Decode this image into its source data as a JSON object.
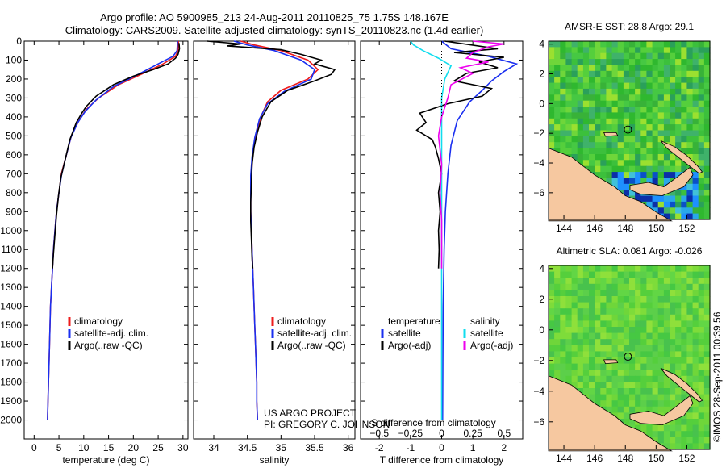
{
  "header": {
    "line1": "Argo profile: AO 5900985_213 24-Aug-2011 20110825_75 1.75S 148.167E",
    "line2": "Climatology: CARS2009. Satellite-adjusted climatology: synTS_20110823.nc (1.4d earlier)"
  },
  "colors": {
    "climatology": "#ee1c1c",
    "satellite": "#1a2ff0",
    "argo": "#000000",
    "argo_salinity_adj": "#ee00ee",
    "satellite_salinity": "#11ddee",
    "land": "#f6c8a0",
    "sea": "#33bb33"
  },
  "credit": {
    "project": "US ARGO PROJECT",
    "pi": "PI: GREGORY C. JOHNSON",
    "imos": "©IMOS 28-Sep-2011 00:39:56"
  },
  "chart_data": [
    {
      "type": "line",
      "id": "temperature",
      "xlabel": "temperature (deg C)",
      "ylabel": "",
      "xlim": [
        -2,
        31
      ],
      "ylim": [
        2100,
        0
      ],
      "xticks": [
        0,
        5,
        10,
        15,
        20,
        25,
        30
      ],
      "yticks": [
        0,
        100,
        200,
        300,
        400,
        500,
        600,
        700,
        800,
        900,
        1000,
        1100,
        1200,
        1300,
        1400,
        1500,
        1600,
        1700,
        1800,
        1900,
        2000
      ],
      "legend": [
        "climatology",
        "satellite-adj. clim.",
        "Argo(..raw -QC)"
      ],
      "series": [
        {
          "name": "climatology",
          "color": "#ee1c1c",
          "points": [
            [
              29.1,
              0
            ],
            [
              29.0,
              50
            ],
            [
              28.5,
              80
            ],
            [
              26,
              120
            ],
            [
              22,
              170
            ],
            [
              17,
              230
            ],
            [
              13,
              300
            ],
            [
              10.5,
              360
            ],
            [
              9,
              420
            ],
            [
              7.5,
              500
            ],
            [
              6.5,
              600
            ],
            [
              5.5,
              700
            ],
            [
              5,
              800
            ],
            [
              4.5,
              900
            ],
            [
              4.2,
              1000
            ],
            [
              3.9,
              1100
            ],
            [
              3.7,
              1200
            ],
            [
              3.5,
              1300
            ],
            [
              3.3,
              1400
            ],
            [
              3.2,
              1500
            ],
            [
              3.1,
              1600
            ],
            [
              3.0,
              1700
            ],
            [
              2.9,
              1800
            ],
            [
              2.8,
              1900
            ],
            [
              2.7,
              2000
            ]
          ]
        },
        {
          "name": "satellite-adj. clim.",
          "color": "#1a2ff0",
          "points": [
            [
              28.9,
              0
            ],
            [
              28.8,
              50
            ],
            [
              28,
              80
            ],
            [
              25,
              120
            ],
            [
              21,
              175
            ],
            [
              16,
              240
            ],
            [
              12.5,
              310
            ],
            [
              10.3,
              370
            ],
            [
              8.8,
              430
            ],
            [
              7.4,
              510
            ],
            [
              6.4,
              610
            ],
            [
              5.5,
              710
            ],
            [
              5,
              800
            ],
            [
              4.5,
              900
            ],
            [
              4.2,
              1000
            ],
            [
              3.9,
              1100
            ],
            [
              3.7,
              1200
            ],
            [
              3.5,
              1300
            ],
            [
              3.3,
              1400
            ],
            [
              3.2,
              1500
            ],
            [
              3.1,
              1600
            ],
            [
              3.0,
              1700
            ],
            [
              2.9,
              1800
            ],
            [
              2.8,
              1900
            ],
            [
              2.7,
              2000
            ]
          ]
        },
        {
          "name": "Argo(..raw -QC)",
          "color": "#000000",
          "points": [
            [
              29.2,
              10
            ],
            [
              29.3,
              40
            ],
            [
              29.0,
              70
            ],
            [
              28.5,
              90
            ],
            [
              27,
              120
            ],
            [
              24,
              150
            ],
            [
              20,
              185
            ],
            [
              16,
              230
            ],
            [
              12.5,
              290
            ],
            [
              10.5,
              345
            ],
            [
              9.6,
              380
            ],
            [
              8.5,
              430
            ],
            [
              7.2,
              520
            ],
            [
              6.3,
              620
            ],
            [
              5.4,
              720
            ],
            [
              4.9,
              820
            ],
            [
              4.5,
              920
            ],
            [
              4.2,
              1020
            ],
            [
              3.9,
              1120
            ],
            [
              3.7,
              1200
            ]
          ]
        }
      ]
    },
    {
      "type": "line",
      "id": "salinity",
      "xlabel": "salinity",
      "ylabel": "",
      "xlim": [
        33.7,
        36.1
      ],
      "ylim": [
        2100,
        0
      ],
      "xticks": [
        34,
        34.5,
        35,
        35.5,
        36
      ],
      "legend": [
        "climatology",
        "satellite-adj. clim.",
        "Argo(..raw -QC)"
      ],
      "series": [
        {
          "name": "climatology",
          "color": "#ee1c1c",
          "points": [
            [
              34.4,
              0
            ],
            [
              34.6,
              20
            ],
            [
              35.0,
              50
            ],
            [
              35.4,
              100
            ],
            [
              35.55,
              150
            ],
            [
              35.4,
              200
            ],
            [
              35.0,
              260
            ],
            [
              34.8,
              320
            ],
            [
              34.7,
              400
            ],
            [
              34.62,
              500
            ],
            [
              34.58,
              600
            ],
            [
              34.56,
              700
            ],
            [
              34.55,
              800
            ],
            [
              34.55,
              900
            ],
            [
              34.56,
              1000
            ],
            [
              34.57,
              1100
            ],
            [
              34.58,
              1200
            ],
            [
              34.59,
              1300
            ],
            [
              34.6,
              1400
            ],
            [
              34.61,
              1500
            ],
            [
              34.62,
              1600
            ],
            [
              34.63,
              1700
            ],
            [
              34.64,
              1800
            ],
            [
              34.64,
              1900
            ],
            [
              34.65,
              2000
            ]
          ]
        },
        {
          "name": "satellite-adj. clim.",
          "color": "#1a2ff0",
          "points": [
            [
              34.3,
              0
            ],
            [
              34.5,
              20
            ],
            [
              34.9,
              50
            ],
            [
              35.3,
              100
            ],
            [
              35.5,
              150
            ],
            [
              35.45,
              200
            ],
            [
              35.05,
              265
            ],
            [
              34.8,
              330
            ],
            [
              34.68,
              410
            ],
            [
              34.61,
              510
            ],
            [
              34.57,
              610
            ],
            [
              34.55,
              710
            ],
            [
              34.55,
              800
            ],
            [
              34.55,
              900
            ],
            [
              34.56,
              1000
            ],
            [
              34.57,
              1100
            ],
            [
              34.58,
              1200
            ],
            [
              34.59,
              1300
            ],
            [
              34.6,
              1400
            ],
            [
              34.61,
              1500
            ],
            [
              34.62,
              1600
            ],
            [
              34.63,
              1700
            ],
            [
              34.64,
              1800
            ],
            [
              34.64,
              1900
            ],
            [
              34.65,
              2000
            ]
          ]
        },
        {
          "name": "Argo(..raw -QC)",
          "color": "#000000",
          "points": [
            [
              33.9,
              0
            ],
            [
              34.4,
              15
            ],
            [
              34.2,
              25
            ],
            [
              35.0,
              45
            ],
            [
              35.3,
              70
            ],
            [
              35.6,
              100
            ],
            [
              35.5,
              120
            ],
            [
              35.8,
              150
            ],
            [
              35.75,
              175
            ],
            [
              35.5,
              210
            ],
            [
              35.1,
              260
            ],
            [
              34.85,
              320
            ],
            [
              34.72,
              400
            ],
            [
              34.65,
              480
            ],
            [
              34.6,
              560
            ],
            [
              34.57,
              650
            ],
            [
              34.56,
              750
            ],
            [
              34.55,
              850
            ],
            [
              34.55,
              950
            ],
            [
              34.56,
              1050
            ],
            [
              34.57,
              1150
            ],
            [
              34.58,
              1200
            ]
          ]
        }
      ]
    },
    {
      "type": "line",
      "id": "difference",
      "xlabel": "T difference from climatology",
      "xlabel_top": "S difference from climatology",
      "xlim": [
        -2.6,
        2.6
      ],
      "ylim": [
        2100,
        0
      ],
      "xticks": [
        -2,
        -1,
        0,
        1,
        2
      ],
      "xticks_s": [
        -0.5,
        -0.25,
        0,
        0.25,
        0.5
      ],
      "legend_temperature": {
        "title": "temperature",
        "items": [
          "satellite",
          "Argo(-adj)"
        ]
      },
      "legend_salinity": {
        "title": "salinity",
        "items": [
          "satellite",
          "Argo(-adj)"
        ]
      },
      "series": [
        {
          "name": "T satellite",
          "color": "#1a2ff0",
          "points": [
            [
              0,
              0
            ],
            [
              0.3,
              40
            ],
            [
              1.5,
              80
            ],
            [
              2.4,
              120
            ],
            [
              2.0,
              160
            ],
            [
              1.6,
              210
            ],
            [
              1.3,
              260
            ],
            [
              0.9,
              320
            ],
            [
              0.5,
              420
            ],
            [
              0.3,
              550
            ],
            [
              0.2,
              700
            ],
            [
              0.12,
              900
            ],
            [
              0.08,
              1100
            ],
            [
              0.05,
              1400
            ],
            [
              0.04,
              1700
            ],
            [
              0.03,
              2000
            ]
          ]
        },
        {
          "name": "T Argo(-adj)",
          "color": "#000000",
          "points": [
            [
              0.1,
              0
            ],
            [
              1.8,
              40
            ],
            [
              0.4,
              60
            ],
            [
              2.0,
              85
            ],
            [
              1.2,
              110
            ],
            [
              1.8,
              140
            ],
            [
              0.8,
              170
            ],
            [
              0.4,
              210
            ],
            [
              1.6,
              250
            ],
            [
              1.3,
              290
            ],
            [
              0.2,
              330
            ],
            [
              -0.7,
              380
            ],
            [
              -0.5,
              430
            ],
            [
              -0.8,
              470
            ],
            [
              -0.3,
              520
            ],
            [
              -0.2,
              560
            ],
            [
              -0.1,
              620
            ],
            [
              0.0,
              700
            ],
            [
              -0.1,
              800
            ],
            [
              -0.05,
              900
            ],
            [
              -0.1,
              1000
            ],
            [
              -0.08,
              1100
            ],
            [
              -0.1,
              1200
            ]
          ]
        },
        {
          "name": "S satellite",
          "color": "#11ddee",
          "points": [
            [
              -1.0,
              0
            ],
            [
              -0.9,
              20
            ],
            [
              -0.6,
              50
            ],
            [
              -0.1,
              90
            ],
            [
              0.3,
              130
            ],
            [
              0.1,
              200
            ],
            [
              0.0,
              300
            ],
            [
              0.0,
              500
            ],
            [
              0.0,
              800
            ],
            [
              0.0,
              1200
            ],
            [
              0.0,
              2000
            ]
          ]
        },
        {
          "name": "S Argo(-adj)",
          "color": "#ee00ee",
          "points": [
            [
              1.0,
              0
            ],
            [
              2.0,
              15
            ],
            [
              1.5,
              30
            ],
            [
              1.0,
              60
            ],
            [
              0.8,
              90
            ],
            [
              1.5,
              110
            ],
            [
              0.6,
              140
            ],
            [
              1.0,
              170
            ],
            [
              0.3,
              230
            ],
            [
              0.2,
              300
            ],
            [
              0.0,
              400
            ],
            [
              -0.1,
              500
            ],
            [
              0.0,
              650
            ],
            [
              -0.05,
              800
            ],
            [
              0.0,
              950
            ],
            [
              0.0,
              1100
            ],
            [
              0.0,
              1200
            ]
          ]
        }
      ]
    },
    {
      "type": "heatmap",
      "id": "sst-map",
      "title": "AMSR-E SST: 28.8 Argo: 29.1",
      "xlim": [
        143,
        153.5
      ],
      "ylim": [
        -7.8,
        4.2
      ],
      "xticks": [
        144,
        146,
        148,
        150,
        152
      ],
      "yticks": [
        -6,
        -4,
        -2,
        0,
        2,
        4
      ],
      "marker": {
        "lon": 148.167,
        "lat": -1.75
      }
    },
    {
      "type": "heatmap",
      "id": "sla-map",
      "title": "Altimetric SLA: 0.081 Argo: -0.026",
      "xlim": [
        143,
        153.5
      ],
      "ylim": [
        -7.8,
        4.2
      ],
      "xticks": [
        144,
        146,
        148,
        150,
        152
      ],
      "yticks": [
        -6,
        -4,
        -2,
        0,
        2,
        4
      ],
      "marker": {
        "lon": 148.167,
        "lat": -1.75
      }
    }
  ]
}
